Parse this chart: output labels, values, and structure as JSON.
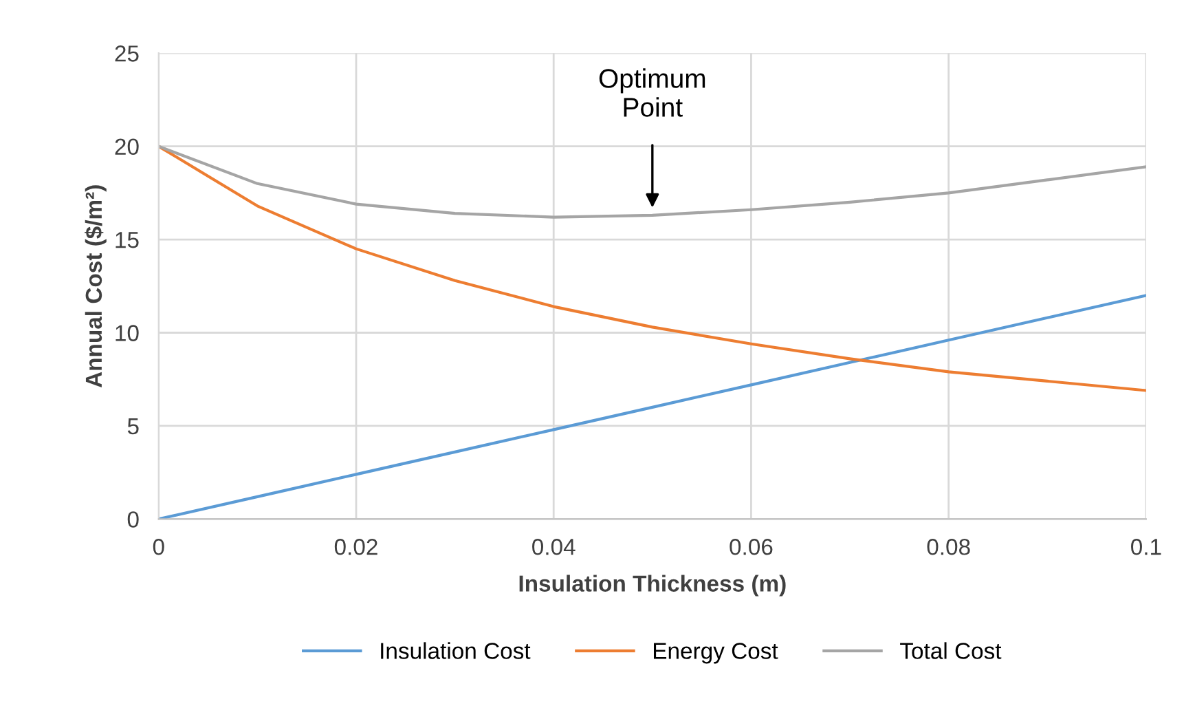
{
  "chart_data": {
    "type": "line",
    "xlabel": "Insulation Thickness (m)",
    "ylabel": "Annual Cost ($/m²)",
    "x": [
      0,
      0.01,
      0.02,
      0.03,
      0.04,
      0.05,
      0.06,
      0.07,
      0.08,
      0.09,
      0.1
    ],
    "series": [
      {
        "name": "Insulation Cost",
        "color": "#5b9bd5",
        "values": [
          0,
          1.2,
          2.4,
          3.6,
          4.8,
          6.0,
          7.2,
          8.4,
          9.6,
          10.8,
          12
        ]
      },
      {
        "name": "Energy Cost",
        "color": "#ed7d31",
        "values": [
          20,
          16.8,
          14.5,
          12.8,
          11.4,
          10.3,
          9.4,
          8.6,
          7.9,
          7.4,
          6.9
        ]
      },
      {
        "name": "Total Cost",
        "color": "#a5a5a5",
        "values": [
          20,
          18.0,
          16.9,
          16.4,
          16.2,
          16.3,
          16.6,
          17.0,
          17.5,
          18.2,
          18.9
        ]
      }
    ],
    "xlim": [
      0,
      0.1
    ],
    "xticks": [
      0,
      0.02,
      0.04,
      0.06,
      0.08,
      0.1
    ],
    "ylim": [
      0,
      25
    ],
    "yticks": [
      0,
      5,
      10,
      15,
      20,
      25
    ],
    "annotations": [
      {
        "text": "Optimum\nPoint",
        "x": 0.05,
        "y": 16.3
      }
    ],
    "grid": true,
    "legend": "bottom",
    "marker": "none",
    "line_style": "solid"
  }
}
